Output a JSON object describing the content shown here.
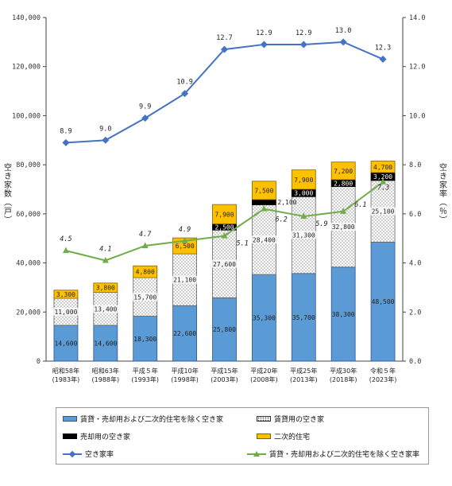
{
  "chart_data": {
    "type": "bar",
    "stacked": true,
    "categories": [
      [
        "昭和58年",
        "(1983年)"
      ],
      [
        "昭和63年",
        "(1988年)"
      ],
      [
        "平成５年",
        "(1993年)"
      ],
      [
        "平成10年",
        "(1998年)"
      ],
      [
        "平成15年",
        "(2003年)"
      ],
      [
        "平成20年",
        "(2008年)"
      ],
      [
        "平成25年",
        "(2013年)"
      ],
      [
        "平成30年",
        "(2018年)"
      ],
      [
        "令和５年",
        "(2023年)"
      ]
    ],
    "series": [
      {
        "name": "賃貸・売却用および二次的住宅を除く空き家",
        "values": [
          14600,
          14600,
          18300,
          22600,
          25800,
          35300,
          35700,
          38300,
          48500
        ],
        "labels": [
          "14,600",
          "14,600",
          "18,300",
          "22,600",
          "25,800",
          "35,300",
          "35,700",
          "38,300",
          "48,500"
        ],
        "color": "#5B9BD5"
      },
      {
        "name": "賃貸用の空き家",
        "values": [
          11000,
          13400,
          15700,
          21100,
          27600,
          28400,
          31300,
          32800,
          25100
        ],
        "labels": [
          "11,000",
          "13,400",
          "15,700",
          "21,100",
          "27,600",
          "28,400",
          "31,300",
          "32,800",
          "25,100"
        ],
        "color": "#ffffff"
      },
      {
        "name": "売却用の空き家",
        "values": [
          null,
          null,
          null,
          null,
          2500,
          2100,
          3000,
          2800,
          3200
        ],
        "labels": [
          "",
          "",
          "",
          "",
          "2,500",
          "2,100",
          "3,000",
          "2,800",
          "3,200"
        ],
        "color": "#000000"
      },
      {
        "name": "二次的住宅",
        "values": [
          3300,
          3800,
          4800,
          6500,
          7900,
          7500,
          7900,
          7200,
          4700
        ],
        "labels": [
          "3,300",
          "3,800",
          "4,800",
          "6,500",
          "7,900",
          "7,500",
          "7,900",
          "7,200",
          "4,700"
        ],
        "color": "#FFC000"
      }
    ],
    "lines": [
      {
        "name": "空き家率",
        "values": [
          8.9,
          9.0,
          9.9,
          10.9,
          12.7,
          12.9,
          12.9,
          13.0,
          12.3
        ],
        "labels": [
          "8.9",
          "9.0",
          "9.9",
          "10.9",
          "12.7",
          "12.9",
          "12.9",
          "13.0",
          "12.3"
        ],
        "color": "#4472C4",
        "marker": "diamond"
      },
      {
        "name": "賃貸・売却用および二次的住宅を除く空き家率",
        "values": [
          4.5,
          4.1,
          4.7,
          4.9,
          5.1,
          6.2,
          5.9,
          6.1,
          7.3
        ],
        "labels": [
          "4.5",
          "4.1",
          "4.7",
          "4.9",
          "5.1",
          "6.2",
          "5.9",
          "6.1",
          "7.3"
        ],
        "color": "#70AD47",
        "marker": "triangle"
      }
    ],
    "ylabel_left": "空き家数（戸）",
    "ylabel_right": "空き家率（％）",
    "ylim_left": [
      0,
      140000
    ],
    "ylim_right": [
      0,
      14.0
    ],
    "left_ticks": [
      "0",
      "20,000",
      "40,000",
      "60,000",
      "80,000",
      "100,000",
      "120,000",
      "140,000"
    ],
    "right_ticks": [
      "0.0",
      "2.0",
      "4.0",
      "6.0",
      "8.0",
      "10.0",
      "12.0",
      "14.0"
    ],
    "grid": false,
    "legend_position": "bottom"
  },
  "legend": {
    "item1": "賃貸・売却用および二次的住宅を除く空き家",
    "item2": "賃貸用の空き家",
    "item3": "売却用の空き家",
    "item4": "二次的住宅",
    "item5": "空き家率",
    "item6": "賃貸・売却用および二次的住宅を除く空き家率"
  }
}
